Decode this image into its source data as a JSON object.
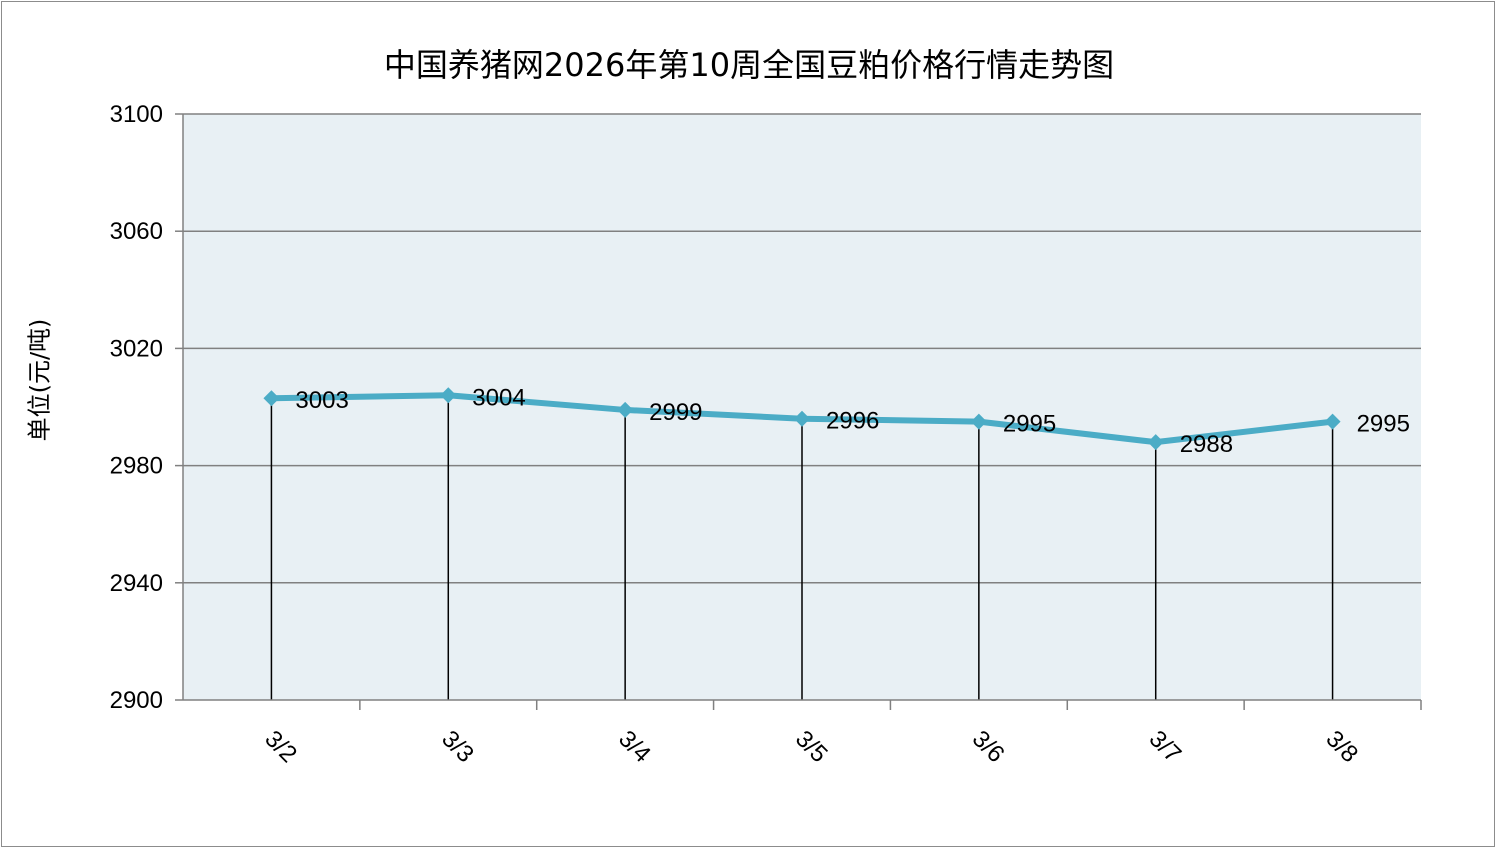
{
  "chart_data": {
    "type": "line",
    "title": "中国养猪网2026年第10周全国豆粕价格行情走势图",
    "ylabel": "单位(元/吨)",
    "xlabel": "",
    "categories": [
      "3/2",
      "3/3",
      "3/4",
      "3/5",
      "3/6",
      "3/7",
      "3/8"
    ],
    "series": [
      {
        "values": [
          3003,
          3004,
          2999,
          2996,
          2995,
          2988,
          2995
        ]
      }
    ],
    "data_labels": [
      "3003",
      "3004",
      "2999",
      "2996",
      "2995",
      "2988",
      "2995"
    ],
    "ylim": [
      2900,
      3100
    ],
    "yticks": [
      2900,
      2940,
      2980,
      3020,
      3060,
      3100
    ],
    "grid": true,
    "drop_lines": true,
    "colors": {
      "line": "#4bacc6",
      "plot_background": "#e8f0f4",
      "grid": "#808080"
    }
  }
}
